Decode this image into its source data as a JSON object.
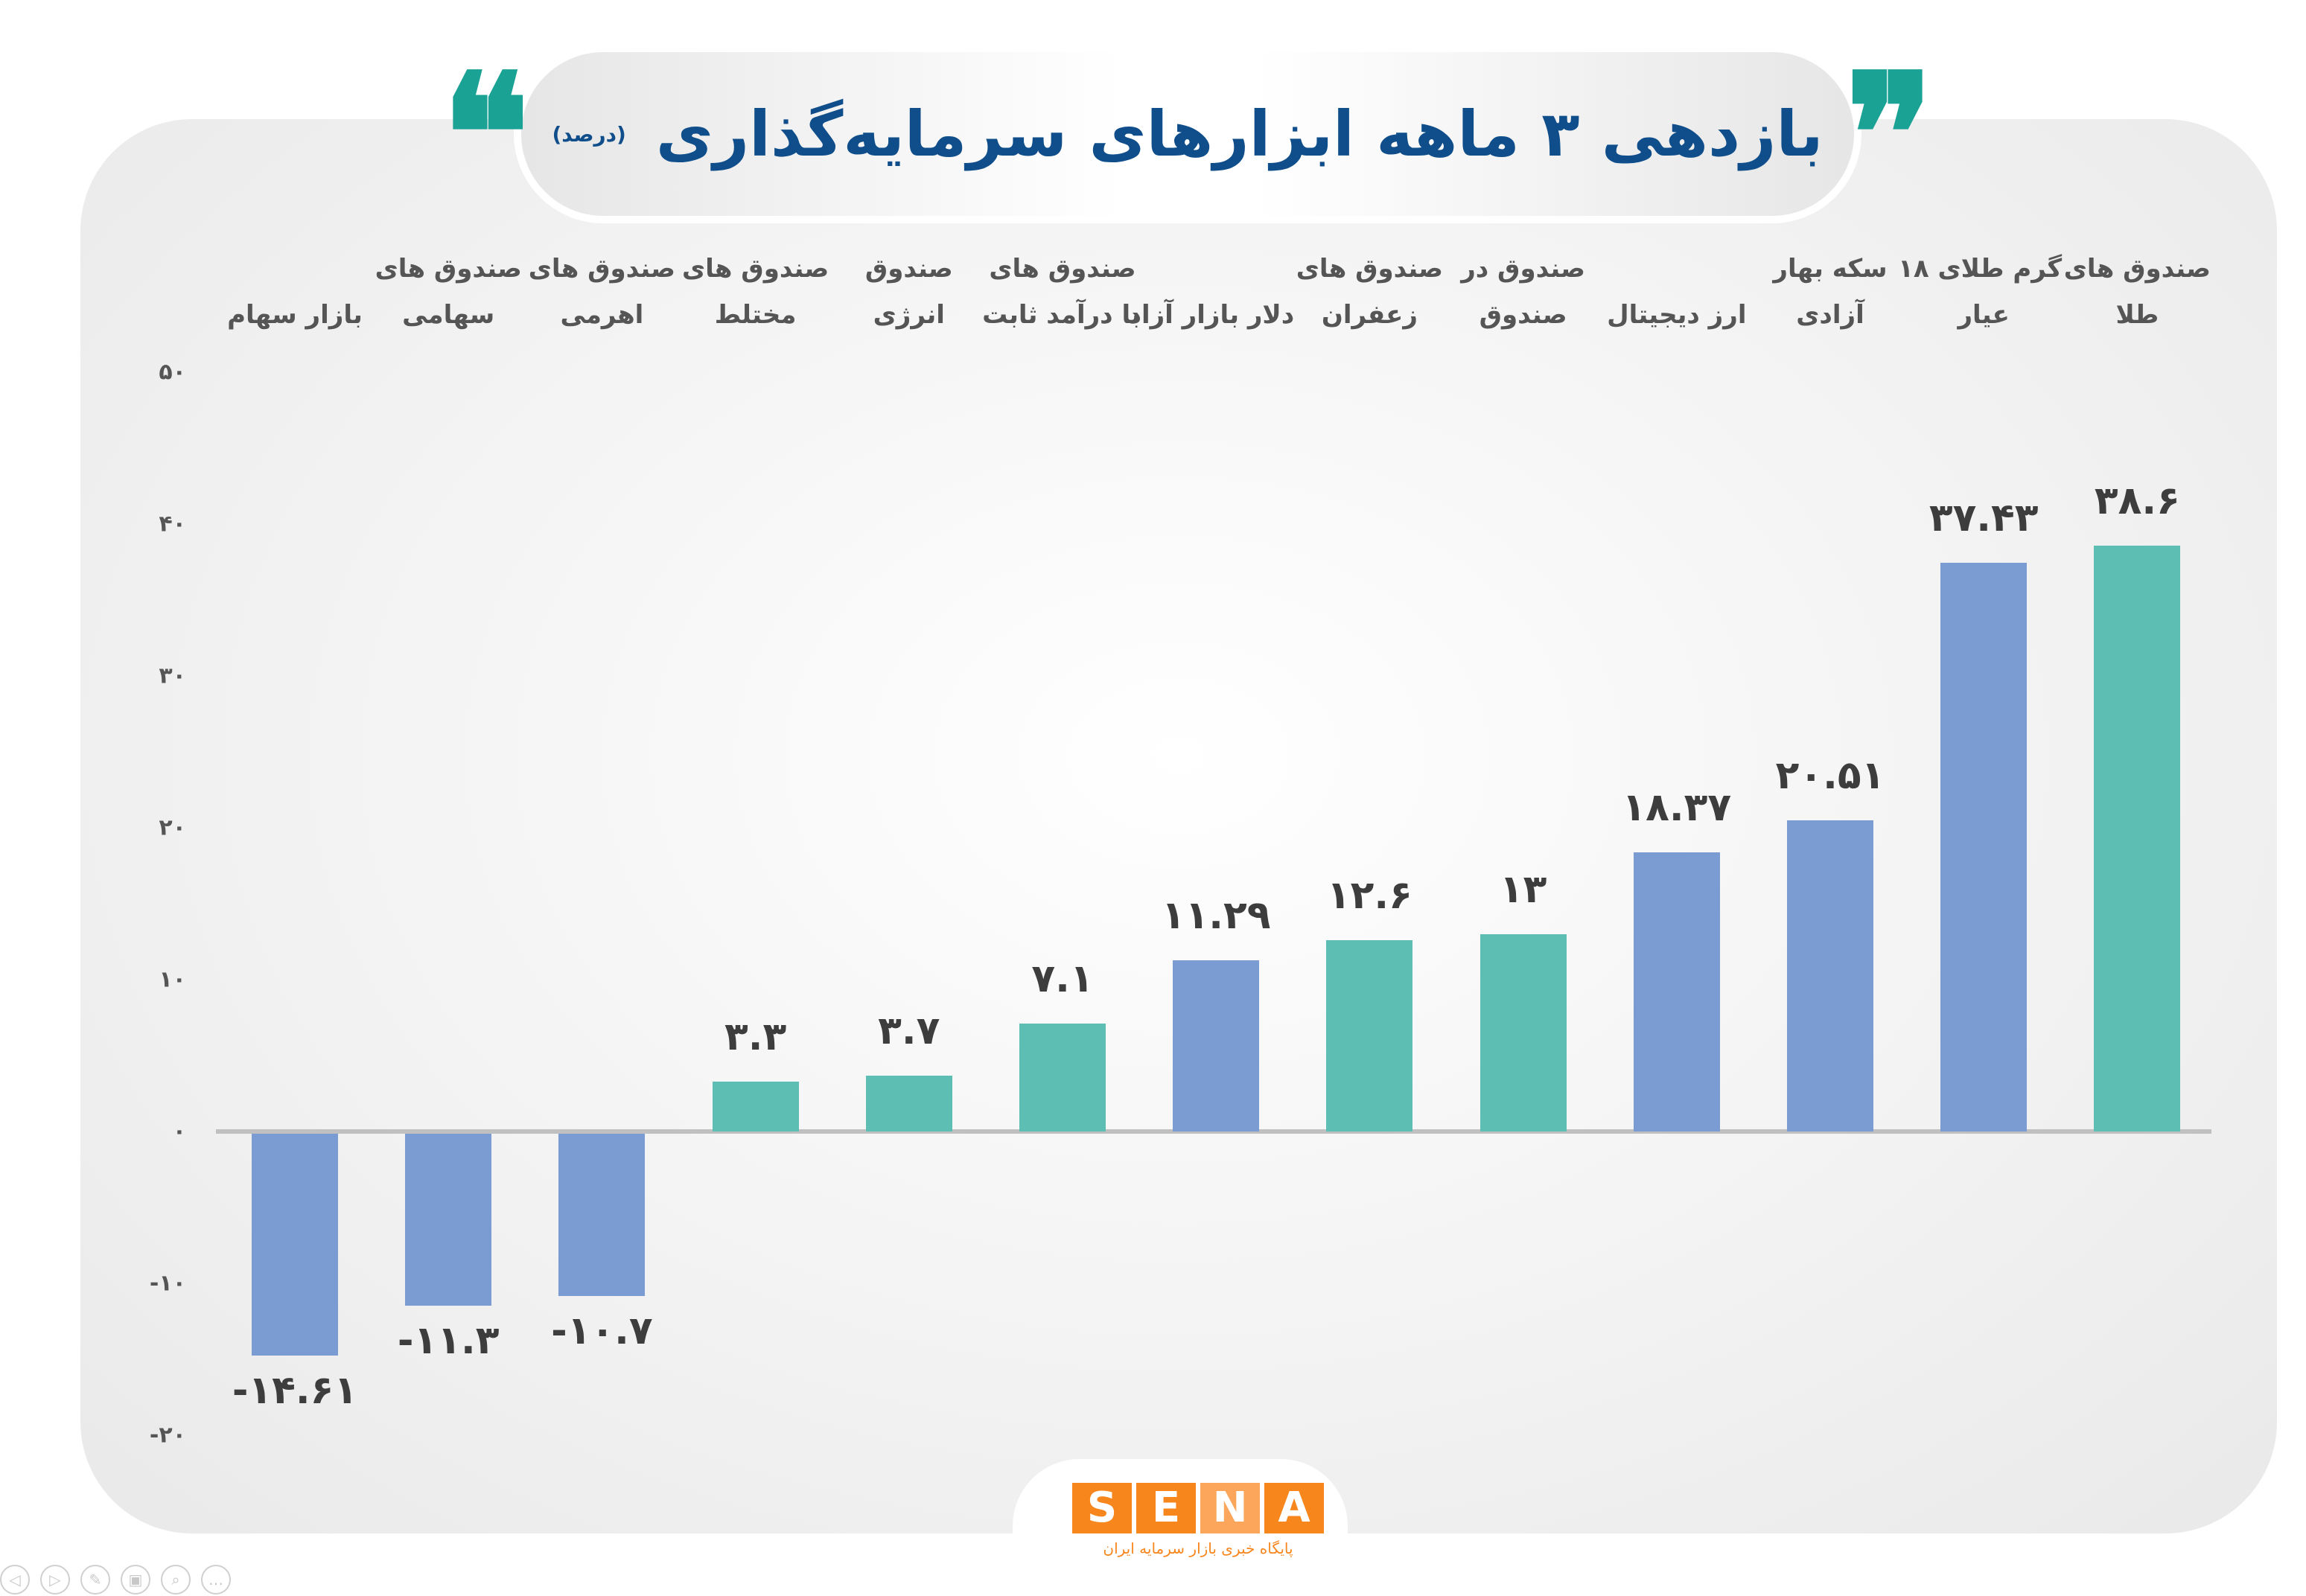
{
  "title": {
    "text": "بازدهی ۳ ماهه ابزارهای سرمایه‌گذاری",
    "unit": "(درصد)",
    "open_quote": "❞",
    "close_quote": "❝",
    "color": "#0f4e8a",
    "quote_color": "#1aa394"
  },
  "colors": {
    "blue": "#7b9bd3",
    "teal": "#5dbeb4",
    "axis": "#c0c0c0",
    "label": "#3d3d3d"
  },
  "y_ticks": [
    "۵۰",
    "۴۰",
    "۳۰",
    "۲۰",
    "۱۰",
    "۰",
    "-۱۰",
    "-۲۰"
  ],
  "chart_data": {
    "type": "bar",
    "title": "بازدهی ۳ ماهه ابزارهای سرمایه‌گذاری (درصد)",
    "xlabel": "",
    "ylabel": "درصد",
    "ylim": [
      -20,
      50
    ],
    "yticks": [
      50,
      40,
      30,
      20,
      10,
      0,
      -10,
      -20
    ],
    "grid": false,
    "legend": null,
    "categories": [
      "بازار سهام",
      "صندوق های سهامی",
      "صندوق های اهرمی",
      "صندوق های مختلط",
      "صندوق انرژی",
      "صندوق های با درآمد ثابت",
      "دلار بازار آزاد",
      "صندوق های زعفران",
      "صندوق در صندوق",
      "ارز دیجیتال",
      "سکه بهار آزادی",
      "گرم طلای ۱۸ عیار",
      "صندوق های طلا"
    ],
    "values": [
      -14.61,
      -11.3,
      -10.7,
      3.3,
      3.7,
      7.1,
      11.29,
      12.6,
      13,
      18.37,
      20.51,
      37.43,
      38.6
    ],
    "bar_colors": [
      "blue",
      "blue",
      "blue",
      "teal",
      "teal",
      "teal",
      "blue",
      "teal",
      "teal",
      "blue",
      "blue",
      "blue",
      "teal"
    ]
  },
  "bars": [
    {
      "line1": "",
      "line2": "بازار سهام",
      "value": -14.61,
      "label": "-۱۴.۶۱",
      "color": "#7b9bd3"
    },
    {
      "line1": "صندوق های",
      "line2": "سهامی",
      "value": -11.3,
      "label": "-۱۱.۳",
      "color": "#7b9bd3"
    },
    {
      "line1": "صندوق های",
      "line2": "اهرمی",
      "value": -10.7,
      "label": "-۱۰.۷",
      "color": "#7b9bd3"
    },
    {
      "line1": "صندوق های",
      "line2": "مختلط",
      "value": 3.3,
      "label": "۳.۳",
      "color": "#5dbeb4"
    },
    {
      "line1": "صندوق",
      "line2": "انرژی",
      "value": 3.7,
      "label": "۳.۷",
      "color": "#5dbeb4"
    },
    {
      "line1": "صندوق های",
      "line2": "با درآمد ثابت",
      "value": 7.1,
      "label": "۷.۱",
      "color": "#5dbeb4"
    },
    {
      "line1": "",
      "line2": "دلار بازار آزاد",
      "value": 11.29,
      "label": "۱۱.۲۹",
      "color": "#7b9bd3"
    },
    {
      "line1": "صندوق های",
      "line2": "زعفران",
      "value": 12.6,
      "label": "۱۲.۶",
      "color": "#5dbeb4"
    },
    {
      "line1": "صندوق در",
      "line2": "صندوق",
      "value": 13,
      "label": "۱۳",
      "color": "#5dbeb4"
    },
    {
      "line1": "",
      "line2": "ارز دیجیتال",
      "value": 18.37,
      "label": "۱۸.۳۷",
      "color": "#7b9bd3"
    },
    {
      "line1": "سکه بهار",
      "line2": "آزادی",
      "value": 20.51,
      "label": "۲۰.۵۱",
      "color": "#7b9bd3"
    },
    {
      "line1": "گرم طلای ۱۸",
      "line2": "عیار",
      "value": 37.43,
      "label": "۳۷.۴۳",
      "color": "#7b9bd3"
    },
    {
      "line1": "صندوق های",
      "line2": "طلا",
      "value": 38.6,
      "label": "۳۸.۶",
      "color": "#5dbeb4"
    }
  ],
  "logo": {
    "letters": [
      "S",
      "E",
      "N",
      "A"
    ],
    "subtitle": "پایگاه خبری بازار سرمایه ایران",
    "color": "#f7861d"
  },
  "controls": [
    {
      "name": "previous-slide-icon",
      "glyph": "◁"
    },
    {
      "name": "next-slide-icon",
      "glyph": "▷"
    },
    {
      "name": "pen-icon",
      "glyph": "✎"
    },
    {
      "name": "slides-grid-icon",
      "glyph": "▣"
    },
    {
      "name": "zoom-icon",
      "glyph": "⌕"
    },
    {
      "name": "more-options-icon",
      "glyph": "…"
    }
  ]
}
